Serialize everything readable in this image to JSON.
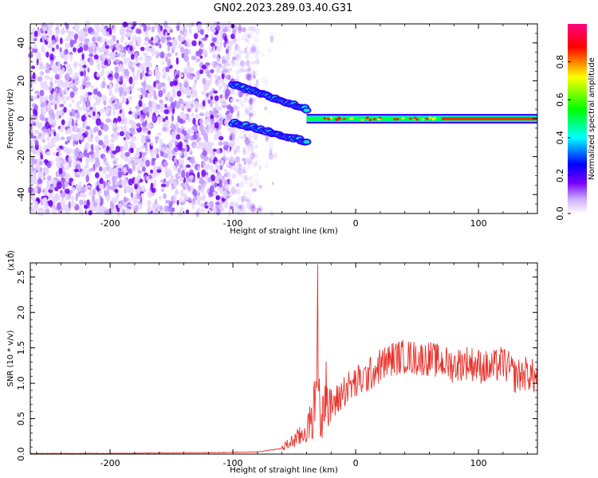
{
  "title": "GN02.2023.289.03.40.G31",
  "chart_data": [
    {
      "type": "heatmap",
      "title": "GN02.2023.289.03.40.G31",
      "xlabel": "Height of straight line (km)",
      "ylabel": "Frequency (Hz)",
      "xlim": [
        -265,
        148
      ],
      "ylim": [
        -50,
        50
      ],
      "x_ticks": [
        "-200",
        "-100",
        "0",
        "100"
      ],
      "y_ticks": [
        "-40",
        "-20",
        "0",
        "20",
        "40"
      ],
      "colorbar": {
        "label": "Normalized spectral amplitude",
        "range": [
          0,
          1
        ],
        "ticks": [
          "0.0",
          "0.2",
          "0.4",
          "0.6",
          "0.8"
        ],
        "colors": [
          "#ffffff",
          "#7a00ff",
          "#0000ff",
          "#00ffff",
          "#00ff00",
          "#ffff00",
          "#ff0000",
          "#ff0080"
        ]
      },
      "features": {
        "noise_region_x": [
          -265,
          -80
        ],
        "upper_branch_x": [
          -100,
          -40
        ],
        "upper_branch_y": [
          18,
          5
        ],
        "lower_branch_x": [
          -100,
          -40
        ],
        "lower_branch_y": [
          -2,
          -12
        ],
        "merged_signal_x": [
          -40,
          148
        ],
        "merged_signal_y": [
          1,
          0
        ]
      }
    },
    {
      "type": "line",
      "xlabel": "Height of straight line (km)",
      "ylabel": "SNR (10 * v/v)",
      "scale_label": "(x10",
      "scale_exp": "4",
      "scale_close": ")",
      "xlim": [
        -265,
        148
      ],
      "ylim": [
        0,
        2.7
      ],
      "x_ticks": [
        "-200",
        "-100",
        "0",
        "100"
      ],
      "y_ticks": [
        "0.0",
        "0.5",
        "1.0",
        "1.5",
        "2.0",
        "2.5"
      ],
      "series": [
        {
          "color": "#e8312a",
          "x": [
            -265,
            -200,
            -120,
            -80,
            -60,
            -50,
            -45,
            -40,
            -35,
            -32,
            -31,
            -30,
            -28,
            -25,
            -22,
            -20,
            -15,
            -10,
            -5,
            0,
            10,
            20,
            30,
            40,
            50,
            60,
            70,
            80,
            90,
            100,
            110,
            120,
            130,
            140,
            148
          ],
          "y": [
            0.01,
            0.01,
            0.02,
            0.03,
            0.08,
            0.2,
            0.25,
            0.35,
            0.5,
            0.9,
            2.68,
            0.8,
            0.3,
            1.3,
            0.5,
            0.7,
            0.75,
            0.9,
            0.95,
            1.0,
            1.1,
            1.25,
            1.35,
            1.38,
            1.35,
            1.35,
            1.3,
            1.25,
            1.3,
            1.25,
            1.2,
            1.3,
            1.1,
            1.15,
            1.05
          ]
        }
      ],
      "peak": {
        "x": -31,
        "y": 2.68
      }
    }
  ]
}
